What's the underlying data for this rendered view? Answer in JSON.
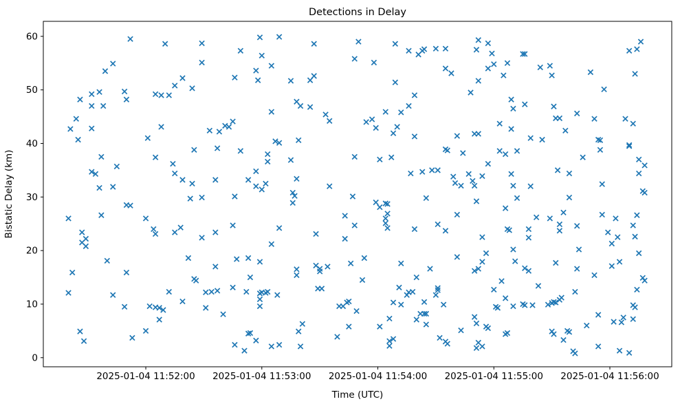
{
  "figure": {
    "background": "#ffffff"
  },
  "chart_data": {
    "type": "scatter",
    "title": "Detections in Delay",
    "xlabel": "Time (UTC)",
    "ylabel": "Bistatic Delay (km)",
    "marker": "x",
    "marker_color": "#1f77b4",
    "grid": false,
    "legend_position": "none",
    "x_unit": "seconds after 2025-01-04 11:51:00 UTC",
    "x_ticks": [
      {
        "label": "2025-01-04 11:52:00",
        "t": 60
      },
      {
        "label": "2025-01-04 11:53:00",
        "t": 120
      },
      {
        "label": "2025-01-04 11:54:00",
        "t": 180
      },
      {
        "label": "2025-01-04 11:55:00",
        "t": 240
      },
      {
        "label": "2025-01-04 11:56:00",
        "t": 300
      }
    ],
    "y_ticks": [
      0,
      10,
      20,
      30,
      40,
      50,
      60
    ],
    "xlim": [
      7,
      332
    ],
    "ylim": [
      -1.7,
      62.8
    ],
    "points": [
      [
        52,
        59.5
      ],
      [
        70,
        58.6
      ],
      [
        43,
        54.9
      ],
      [
        39,
        53.5
      ],
      [
        79,
        52.2
      ],
      [
        75,
        50.8
      ],
      [
        84,
        50.3
      ],
      [
        26,
        48.2
      ],
      [
        32,
        49.2
      ],
      [
        36,
        49.6
      ],
      [
        49,
        49.7
      ],
      [
        50,
        48.2
      ],
      [
        65,
        49.2
      ],
      [
        68,
        49.0
      ],
      [
        72,
        49.0
      ],
      [
        32,
        47.0
      ],
      [
        38,
        47.0
      ],
      [
        24,
        44.6
      ],
      [
        21,
        42.7
      ],
      [
        32,
        42.8
      ],
      [
        68,
        43.1
      ],
      [
        61,
        41.0
      ],
      [
        89,
        58.7
      ],
      [
        89,
        55.1
      ],
      [
        119,
        59.8
      ],
      [
        129,
        59.9
      ],
      [
        147,
        58.6
      ],
      [
        109,
        57.3
      ],
      [
        120,
        56.4
      ],
      [
        125,
        54.5
      ],
      [
        117,
        53.6
      ],
      [
        106,
        52.3
      ],
      [
        118,
        51.8
      ],
      [
        135,
        51.7
      ],
      [
        145,
        51.8
      ],
      [
        147,
        52.6
      ],
      [
        138,
        47.8
      ],
      [
        140,
        47.0
      ],
      [
        145,
        46.8
      ],
      [
        125,
        45.9
      ],
      [
        153,
        45.4
      ],
      [
        155,
        44.2
      ],
      [
        93,
        42.4
      ],
      [
        98,
        42.2
      ],
      [
        101,
        43.3
      ],
      [
        103,
        43.1
      ],
      [
        105,
        44.1
      ],
      [
        170,
        59.0
      ],
      [
        168,
        55.8
      ],
      [
        189,
        58.6
      ],
      [
        178,
        55.1
      ],
      [
        196,
        57.3
      ],
      [
        201,
        56.6
      ],
      [
        203,
        57.3
      ],
      [
        204,
        57.6
      ],
      [
        210,
        57.7
      ],
      [
        215,
        57.7
      ],
      [
        232,
        59.3
      ],
      [
        237,
        58.7
      ],
      [
        231,
        57.5
      ],
      [
        239,
        56.8
      ],
      [
        240,
        54.8
      ],
      [
        237,
        54.0
      ],
      [
        247,
        55.0
      ],
      [
        245,
        52.7
      ],
      [
        215,
        54.0
      ],
      [
        218,
        53.1
      ],
      [
        232,
        51.7
      ],
      [
        189,
        51.4
      ],
      [
        228,
        49.5
      ],
      [
        199,
        49.0
      ],
      [
        196,
        47.0
      ],
      [
        184,
        45.9
      ],
      [
        192,
        45.8
      ],
      [
        249,
        48.2
      ],
      [
        174,
        44.0
      ],
      [
        177,
        44.5
      ],
      [
        179,
        42.9
      ],
      [
        188,
        41.9
      ],
      [
        190,
        43.1
      ],
      [
        199,
        41.3
      ],
      [
        221,
        41.4
      ],
      [
        230,
        41.8
      ],
      [
        232,
        41.8
      ],
      [
        243,
        43.7
      ],
      [
        249,
        42.7
      ],
      [
        255,
        56.7
      ],
      [
        256,
        56.7
      ],
      [
        316,
        59.0
      ],
      [
        310,
        57.3
      ],
      [
        314,
        57.6
      ],
      [
        264,
        54.2
      ],
      [
        269,
        54.5
      ],
      [
        270,
        52.7
      ],
      [
        290,
        53.3
      ],
      [
        313,
        53.0
      ],
      [
        297,
        50.1
      ],
      [
        256,
        47.3
      ],
      [
        250,
        46.5
      ],
      [
        271,
        46.9
      ],
      [
        272,
        44.7
      ],
      [
        274,
        44.7
      ],
      [
        283,
        45.6
      ],
      [
        292,
        44.6
      ],
      [
        308,
        44.6
      ],
      [
        312,
        43.7
      ],
      [
        277,
        42.4
      ],
      [
        259,
        41.0
      ],
      [
        25,
        40.7
      ],
      [
        85,
        38.8
      ],
      [
        37,
        37.5
      ],
      [
        65,
        37.4
      ],
      [
        74,
        36.2
      ],
      [
        45,
        35.7
      ],
      [
        32,
        34.7
      ],
      [
        34,
        34.3
      ],
      [
        75,
        34.4
      ],
      [
        79,
        33.2
      ],
      [
        84,
        32.5
      ],
      [
        36,
        31.7
      ],
      [
        43,
        31.9
      ],
      [
        83,
        29.7
      ],
      [
        50,
        28.5
      ],
      [
        52,
        28.4
      ],
      [
        37,
        26.6
      ],
      [
        20,
        26.0
      ],
      [
        60,
        26.0
      ],
      [
        64,
        24.0
      ],
      [
        65,
        23.1
      ],
      [
        75,
        23.4
      ],
      [
        78,
        24.3
      ],
      [
        27,
        23.4
      ],
      [
        29,
        22.2
      ],
      [
        27,
        21.5
      ],
      [
        29,
        20.8
      ],
      [
        127,
        40.4
      ],
      [
        129,
        40.1
      ],
      [
        139,
        40.6
      ],
      [
        97,
        39.1
      ],
      [
        109,
        38.6
      ],
      [
        123,
        38.0
      ],
      [
        123,
        36.6
      ],
      [
        135,
        36.9
      ],
      [
        168,
        37.5
      ],
      [
        117,
        34.8
      ],
      [
        96,
        33.2
      ],
      [
        113,
        33.2
      ],
      [
        117,
        32.0
      ],
      [
        122,
        32.5
      ],
      [
        120,
        31.4
      ],
      [
        138,
        33.4
      ],
      [
        155,
        32.0
      ],
      [
        89,
        29.9
      ],
      [
        106,
        30.1
      ],
      [
        136,
        30.8
      ],
      [
        137,
        30.2
      ],
      [
        136,
        28.9
      ],
      [
        167,
        30.1
      ],
      [
        163,
        26.5
      ],
      [
        168,
        24.7
      ],
      [
        105,
        24.7
      ],
      [
        129,
        24.2
      ],
      [
        96,
        23.4
      ],
      [
        89,
        22.4
      ],
      [
        148,
        23.1
      ],
      [
        163,
        22.2
      ],
      [
        125,
        21.2
      ],
      [
        215,
        38.9
      ],
      [
        216,
        38.7
      ],
      [
        224,
        38.2
      ],
      [
        243,
        38.6
      ],
      [
        246,
        38.0
      ],
      [
        181,
        37.0
      ],
      [
        187,
        37.4
      ],
      [
        237,
        36.2
      ],
      [
        197,
        34.4
      ],
      [
        203,
        34.7
      ],
      [
        208,
        35.0
      ],
      [
        211,
        35.0
      ],
      [
        219,
        33.8
      ],
      [
        227,
        34.3
      ],
      [
        229,
        33.0
      ],
      [
        234,
        33.9
      ],
      [
        220,
        32.6
      ],
      [
        223,
        32.1
      ],
      [
        230,
        32.1
      ],
      [
        249,
        34.3
      ],
      [
        250,
        32.1
      ],
      [
        179,
        29.0
      ],
      [
        181,
        28.1
      ],
      [
        184,
        28.8
      ],
      [
        185,
        28.7
      ],
      [
        205,
        29.8
      ],
      [
        231,
        29.2
      ],
      [
        185,
        26.9
      ],
      [
        184,
        26.0
      ],
      [
        184,
        25.1
      ],
      [
        185,
        24.2
      ],
      [
        221,
        26.7
      ],
      [
        246,
        27.9
      ],
      [
        199,
        24.0
      ],
      [
        211,
        24.9
      ],
      [
        215,
        23.7
      ],
      [
        247,
        24.0
      ],
      [
        248,
        23.8
      ],
      [
        234,
        22.5
      ],
      [
        265,
        40.7
      ],
      [
        294,
        40.7
      ],
      [
        295,
        40.6
      ],
      [
        310,
        39.7
      ],
      [
        310,
        39.5
      ],
      [
        252,
        38.6
      ],
      [
        295,
        38.8
      ],
      [
        286,
        37.4
      ],
      [
        315,
        37.0
      ],
      [
        318,
        35.9
      ],
      [
        273,
        35.0
      ],
      [
        279,
        34.4
      ],
      [
        315,
        34.4
      ],
      [
        259,
        32.0
      ],
      [
        296,
        32.4
      ],
      [
        317,
        31.1
      ],
      [
        318,
        30.8
      ],
      [
        252,
        29.8
      ],
      [
        279,
        29.9
      ],
      [
        276,
        27.1
      ],
      [
        262,
        26.2
      ],
      [
        269,
        26.0
      ],
      [
        296,
        26.7
      ],
      [
        303,
        26.0
      ],
      [
        314,
        26.6
      ],
      [
        274,
        24.9
      ],
      [
        283,
        24.6
      ],
      [
        258,
        24.0
      ],
      [
        274,
        23.7
      ],
      [
        299,
        23.4
      ],
      [
        304,
        22.5
      ],
      [
        312,
        24.7
      ],
      [
        258,
        22.4
      ],
      [
        313,
        22.6
      ],
      [
        301,
        21.3
      ],
      [
        284,
        20.2
      ],
      [
        250,
        20.2
      ],
      [
        40,
        18.1
      ],
      [
        82,
        18.6
      ],
      [
        22,
        15.9
      ],
      [
        50,
        15.9
      ],
      [
        85,
        14.7
      ],
      [
        86,
        14.4
      ],
      [
        20,
        12.1
      ],
      [
        43,
        11.7
      ],
      [
        72,
        12.3
      ],
      [
        79,
        10.5
      ],
      [
        49,
        9.5
      ],
      [
        62,
        9.6
      ],
      [
        65,
        9.4
      ],
      [
        67,
        9.3
      ],
      [
        69,
        8.9
      ],
      [
        67,
        7.1
      ],
      [
        60,
        5.0
      ],
      [
        53,
        3.7
      ],
      [
        26,
        4.9
      ],
      [
        28,
        3.1
      ],
      [
        107,
        18.4
      ],
      [
        113,
        18.6
      ],
      [
        119,
        17.9
      ],
      [
        96,
        17.0
      ],
      [
        138,
        16.5
      ],
      [
        138,
        15.4
      ],
      [
        148,
        17.2
      ],
      [
        150,
        16.6
      ],
      [
        150,
        16.1
      ],
      [
        154,
        17.0
      ],
      [
        166,
        17.6
      ],
      [
        114,
        15.0
      ],
      [
        105,
        13.1
      ],
      [
        112,
        12.3
      ],
      [
        91,
        12.2
      ],
      [
        94,
        12.3
      ],
      [
        97,
        12.5
      ],
      [
        119,
        12.0
      ],
      [
        120,
        12.2
      ],
      [
        122,
        12.1
      ],
      [
        123,
        12.3
      ],
      [
        119,
        10.9
      ],
      [
        128,
        11.7
      ],
      [
        119,
        9.6
      ],
      [
        91,
        9.3
      ],
      [
        100,
        8.1
      ],
      [
        149,
        12.9
      ],
      [
        151,
        12.9
      ],
      [
        160,
        9.6
      ],
      [
        162,
        9.6
      ],
      [
        164,
        10.3
      ],
      [
        165,
        10.5
      ],
      [
        141,
        6.3
      ],
      [
        139,
        4.9
      ],
      [
        165,
        5.8
      ],
      [
        159,
        3.9
      ],
      [
        106,
        2.4
      ],
      [
        111,
        1.3
      ],
      [
        113,
        4.5
      ],
      [
        114,
        4.6
      ],
      [
        117,
        3.2
      ],
      [
        125,
        2.1
      ],
      [
        129,
        2.4
      ],
      [
        140,
        2.1
      ],
      [
        173,
        18.6
      ],
      [
        236,
        19.5
      ],
      [
        192,
        17.6
      ],
      [
        207,
        16.6
      ],
      [
        221,
        18.8
      ],
      [
        234,
        17.9
      ],
      [
        230,
        16.2
      ],
      [
        232,
        16.6
      ],
      [
        172,
        14.5
      ],
      [
        200,
        15.0
      ],
      [
        244,
        14.3
      ],
      [
        191,
        13.1
      ],
      [
        196,
        12.2
      ],
      [
        198,
        12.3
      ],
      [
        195,
        11.7
      ],
      [
        211,
        13.0
      ],
      [
        211,
        12.6
      ],
      [
        210,
        11.7
      ],
      [
        240,
        12.7
      ],
      [
        246,
        11.1
      ],
      [
        188,
        10.3
      ],
      [
        192,
        9.9
      ],
      [
        204,
        10.4
      ],
      [
        214,
        9.9
      ],
      [
        241,
        9.5
      ],
      [
        242,
        9.3
      ],
      [
        169,
        8.7
      ],
      [
        202,
        8.2
      ],
      [
        204,
        8.2
      ],
      [
        205,
        8.2
      ],
      [
        186,
        7.3
      ],
      [
        200,
        7.1
      ],
      [
        181,
        5.8
      ],
      [
        205,
        6.2
      ],
      [
        230,
        7.6
      ],
      [
        231,
        6.4
      ],
      [
        236,
        5.8
      ],
      [
        237,
        5.5
      ],
      [
        223,
        5.1
      ],
      [
        246,
        4.4
      ],
      [
        247,
        4.6
      ],
      [
        186,
        3.1
      ],
      [
        188,
        3.5
      ],
      [
        186,
        2.2
      ],
      [
        212,
        3.7
      ],
      [
        215,
        3.0
      ],
      [
        216,
        2.6
      ],
      [
        232,
        2.8
      ],
      [
        231,
        1.8
      ],
      [
        234,
        2.1
      ],
      [
        250,
        9.6
      ],
      [
        315,
        19.5
      ],
      [
        251,
        18.0
      ],
      [
        272,
        17.7
      ],
      [
        256,
        16.7
      ],
      [
        258,
        16.2
      ],
      [
        283,
        16.6
      ],
      [
        301,
        17.1
      ],
      [
        305,
        17.9
      ],
      [
        292,
        15.4
      ],
      [
        317,
        14.9
      ],
      [
        318,
        14.4
      ],
      [
        263,
        13.4
      ],
      [
        314,
        12.7
      ],
      [
        282,
        12.3
      ],
      [
        268,
        9.9
      ],
      [
        270,
        10.2
      ],
      [
        271,
        10.4
      ],
      [
        272,
        10.3
      ],
      [
        274,
        10.8
      ],
      [
        275,
        11.2
      ],
      [
        255,
        10.0
      ],
      [
        256,
        9.8
      ],
      [
        260,
        9.8
      ],
      [
        312,
        9.8
      ],
      [
        313,
        9.4
      ],
      [
        294,
        8.0
      ],
      [
        302,
        6.7
      ],
      [
        307,
        7.5
      ],
      [
        306,
        6.6
      ],
      [
        312,
        7.2
      ],
      [
        288,
        6.0
      ],
      [
        270,
        4.9
      ],
      [
        271,
        4.4
      ],
      [
        278,
        5.0
      ],
      [
        279,
        4.8
      ],
      [
        276,
        3.3
      ],
      [
        294,
        2.1
      ],
      [
        281,
        1.2
      ],
      [
        282,
        0.8
      ],
      [
        305,
        1.3
      ],
      [
        310,
        0.9
      ]
    ]
  }
}
